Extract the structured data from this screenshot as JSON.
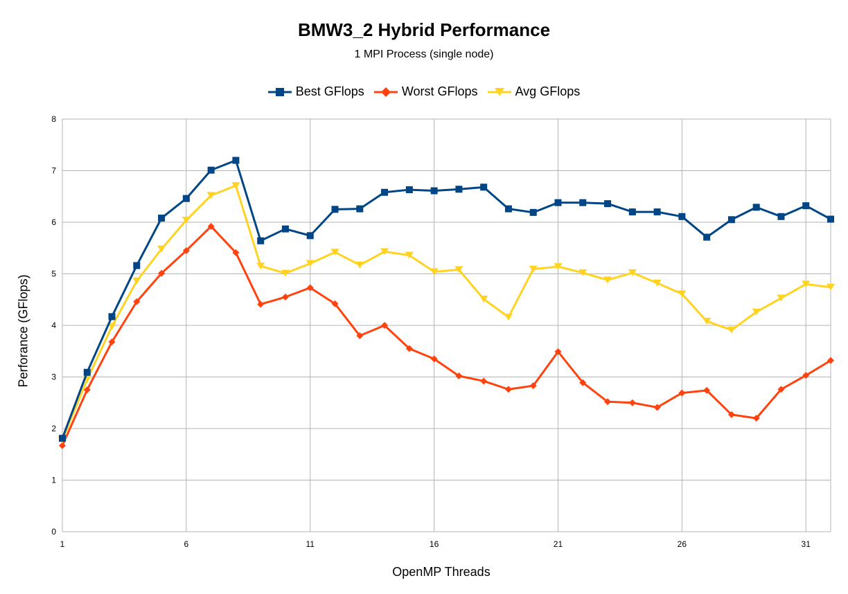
{
  "chart_data": {
    "type": "line",
    "title": "BMW3_2 Hybrid Performance",
    "subtitle": "1 MPI Process (single node)",
    "xlabel": "OpenMP Threads",
    "ylabel": "Perforance (GFlops)",
    "xlim": [
      1,
      32
    ],
    "ylim": [
      0,
      8
    ],
    "xticks": [
      1,
      6,
      11,
      16,
      21,
      26,
      31
    ],
    "yticks": [
      0,
      1,
      2,
      3,
      4,
      5,
      6,
      7,
      8
    ],
    "grid": true,
    "legend_position": "top",
    "x": [
      1,
      2,
      3,
      4,
      5,
      6,
      7,
      8,
      9,
      10,
      11,
      12,
      13,
      14,
      15,
      16,
      17,
      18,
      19,
      20,
      21,
      22,
      23,
      24,
      25,
      26,
      27,
      28,
      29,
      30,
      31,
      32
    ],
    "series": [
      {
        "name": "Best GFlops",
        "color": "#004586",
        "marker": "square",
        "values": [
          1.81,
          3.09,
          4.17,
          5.16,
          6.08,
          6.46,
          7.01,
          7.2,
          5.64,
          5.87,
          5.74,
          6.25,
          6.26,
          6.58,
          6.63,
          6.61,
          6.64,
          6.68,
          6.26,
          6.19,
          6.38,
          6.38,
          6.36,
          6.2,
          6.2,
          6.11,
          5.71,
          6.05,
          6.29,
          6.11,
          6.32,
          6.06
        ]
      },
      {
        "name": "Worst GFlops",
        "color": "#ff420e",
        "marker": "diamond",
        "values": [
          1.67,
          2.75,
          3.68,
          4.46,
          5.01,
          5.45,
          5.92,
          5.41,
          4.41,
          4.55,
          4.73,
          4.42,
          3.8,
          4.0,
          3.55,
          3.35,
          3.02,
          2.92,
          2.76,
          2.83,
          3.49,
          2.89,
          2.52,
          2.5,
          2.41,
          2.69,
          2.74,
          2.27,
          2.2,
          2.76,
          3.03,
          3.32
        ]
      },
      {
        "name": "Avg GFlops",
        "color": "#ffd320",
        "marker": "triangle-down",
        "values": [
          1.78,
          2.95,
          3.98,
          4.86,
          5.48,
          6.04,
          6.52,
          6.71,
          5.15,
          5.01,
          5.2,
          5.42,
          5.17,
          5.43,
          5.36,
          5.04,
          5.08,
          4.51,
          4.16,
          5.09,
          5.14,
          5.02,
          4.88,
          5.02,
          4.82,
          4.61,
          4.08,
          3.91,
          4.26,
          4.53,
          4.8,
          4.74
        ]
      }
    ]
  }
}
